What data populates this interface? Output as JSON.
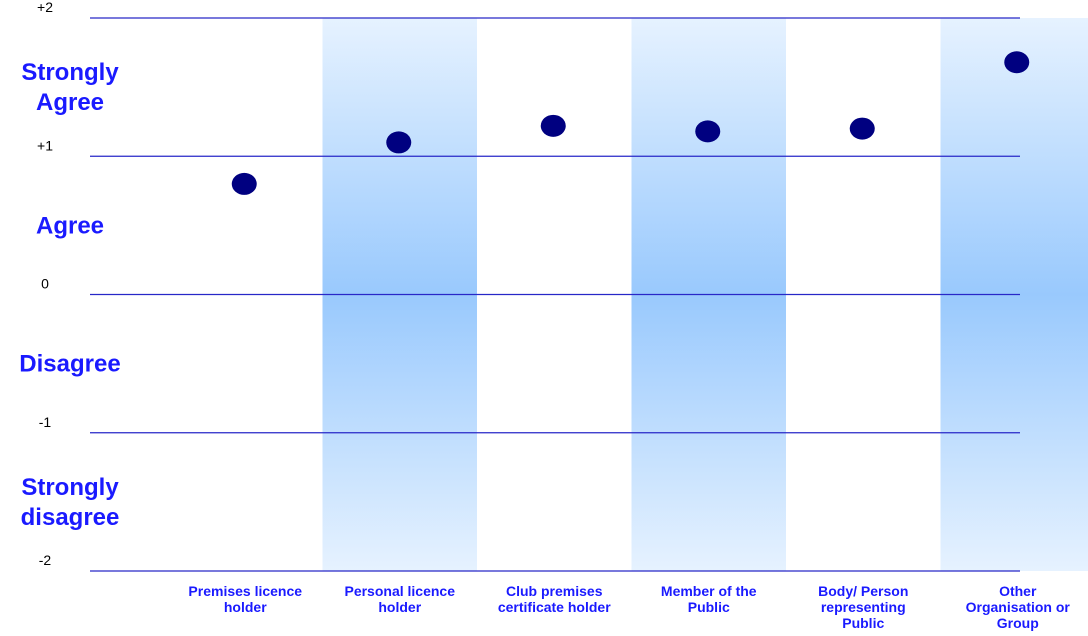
{
  "chart_data": {
    "type": "scatter",
    "title": "",
    "xlabel": "",
    "ylabel": "",
    "ylim": [
      -2,
      2
    ],
    "yticks": [
      {
        "value": 2,
        "label": "+2"
      },
      {
        "value": 1,
        "label": "+1"
      },
      {
        "value": 0,
        "label": "0"
      },
      {
        "value": -1,
        "label": "-1"
      },
      {
        "value": -2,
        "label": "-2"
      }
    ],
    "zone_labels": [
      {
        "lines": [
          "Strongly",
          "Agree"
        ],
        "value": 1.5
      },
      {
        "lines": [
          "Agree"
        ],
        "value": 0.5
      },
      {
        "lines": [
          "Disagree"
        ],
        "value": -0.5
      },
      {
        "lines": [
          "Strongly",
          "disagree"
        ],
        "value": -1.5
      }
    ],
    "categories": [
      {
        "label": [
          "Premises licence",
          "holder"
        ],
        "shaded": false
      },
      {
        "label": [
          "Personal licence",
          "holder"
        ],
        "shaded": true
      },
      {
        "label": [
          "Club premises",
          "certificate holder"
        ],
        "shaded": false
      },
      {
        "label": [
          "Member of the",
          "Public"
        ],
        "shaded": true
      },
      {
        "label": [
          "Body/ Person",
          "representing",
          "Public"
        ],
        "shaded": false
      },
      {
        "label": [
          "Other",
          "Organisation or",
          "Group"
        ],
        "shaded": true
      }
    ],
    "values": [
      0.8,
      1.1,
      1.22,
      1.18,
      1.2,
      1.68
    ],
    "grid": true,
    "colors": {
      "marker": "#000080",
      "gridline": "#2828c8",
      "label_text": "#1a1aff",
      "band_edge": "#e6f2ff",
      "band_center": "#99c9fd"
    }
  }
}
